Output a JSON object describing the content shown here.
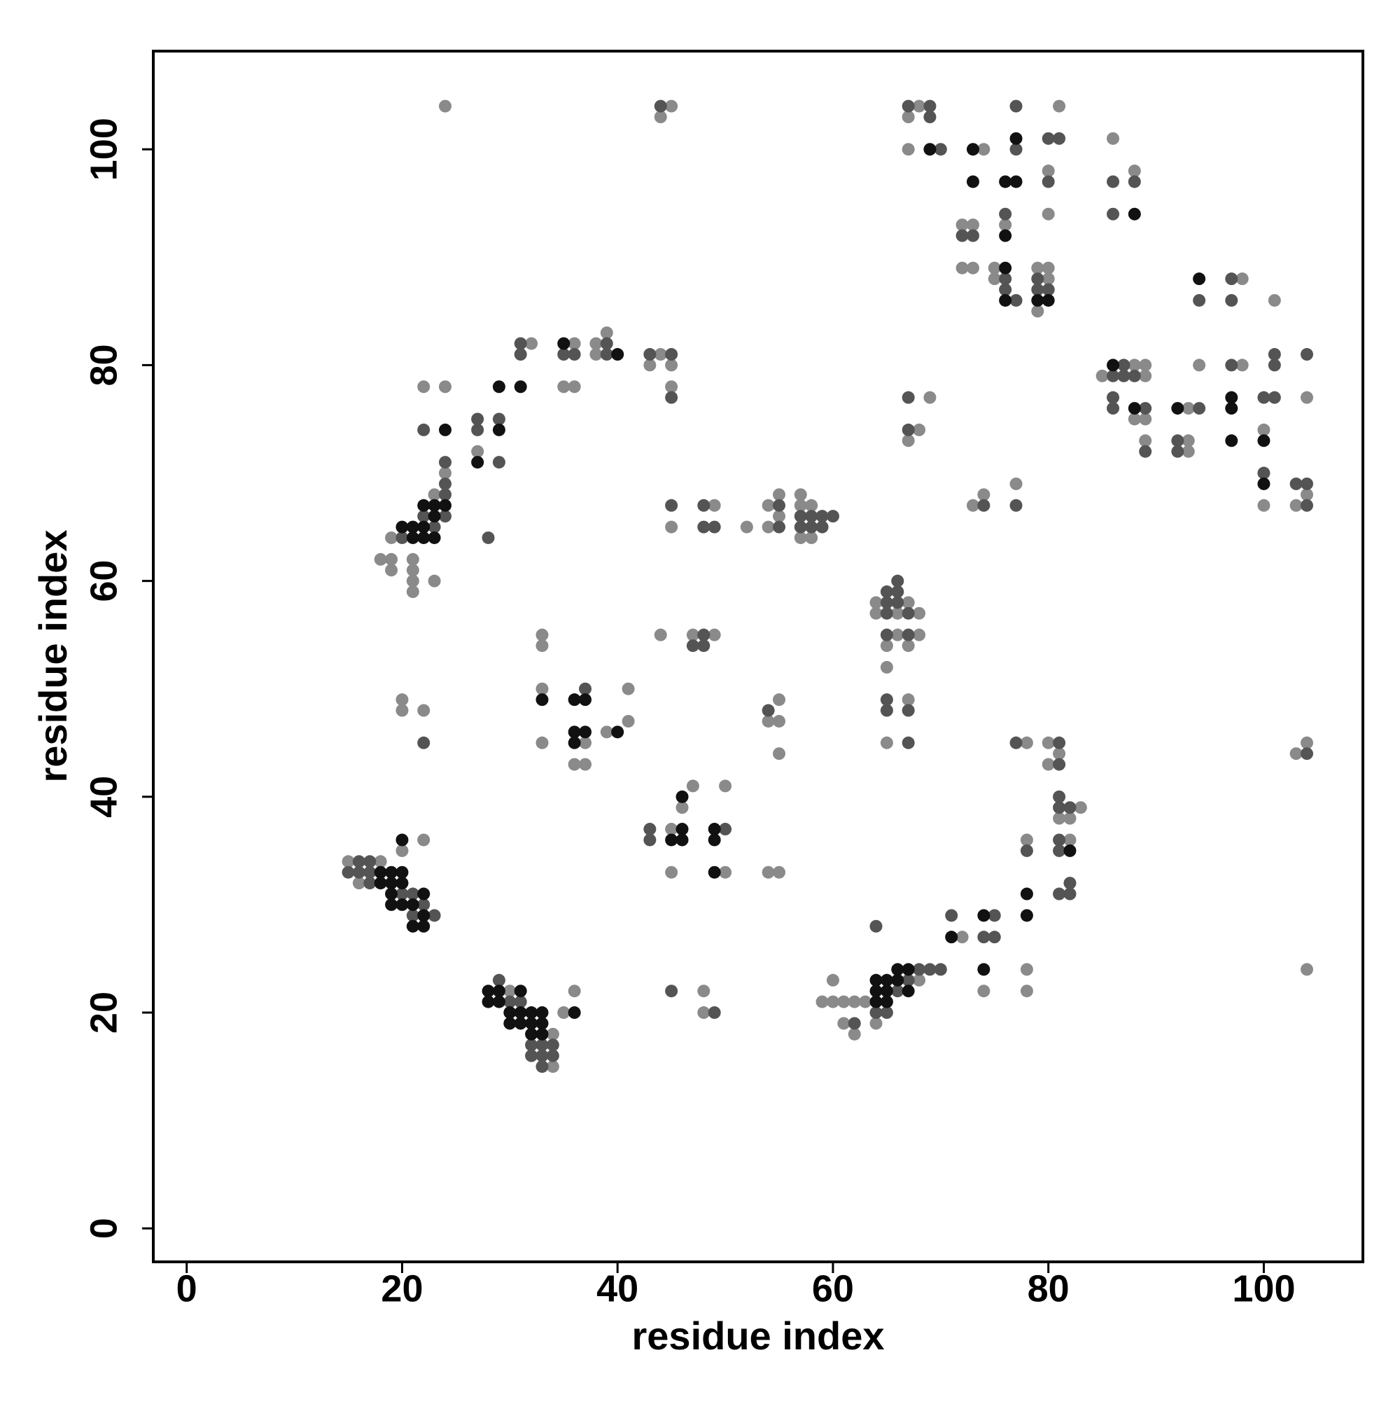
{
  "chart_data": {
    "type": "scatter",
    "xlabel": "residue index",
    "ylabel": "residue index",
    "xlim": [
      -3.1,
      109.2
    ],
    "ylim": [
      -3.1,
      109.1
    ],
    "xticks": [
      0,
      20,
      40,
      60,
      80,
      100
    ],
    "yticks": [
      0,
      20,
      40,
      60,
      80,
      100
    ],
    "series": [
      {
        "color": "#8a8a8a",
        "x": [
          15,
          16,
          18,
          20,
          22,
          30,
          34,
          34,
          35,
          36,
          18,
          19,
          19,
          19,
          21,
          21,
          21,
          21,
          22,
          23,
          23,
          24,
          24,
          27,
          32,
          35,
          36,
          36,
          38,
          38,
          39,
          43,
          44,
          45,
          45,
          44,
          45,
          24,
          45,
          49,
          52,
          54,
          54,
          55,
          55,
          57,
          57,
          57,
          58,
          58,
          33,
          33,
          33,
          33,
          36,
          37,
          37,
          39,
          41,
          41,
          20,
          20,
          22,
          45,
          45,
          46,
          47,
          50,
          50,
          54,
          55,
          48,
          48,
          47,
          49,
          44,
          54,
          55,
          55,
          55,
          59,
          60,
          60,
          61,
          61,
          62,
          62,
          63,
          64,
          68,
          72,
          74,
          78,
          78,
          78,
          78,
          80,
          80,
          81,
          81,
          82,
          82,
          83,
          104,
          103,
          104,
          64,
          64,
          65,
          65,
          65,
          66,
          66,
          67,
          67,
          67,
          68,
          68,
          67,
          67,
          68,
          72,
          72,
          73,
          73,
          74,
          75,
          75,
          76,
          79,
          79,
          80,
          80,
          80,
          80,
          81,
          86,
          88,
          67,
          68,
          69,
          73,
          74,
          77,
          85,
          88,
          88,
          89,
          89,
          89,
          89,
          93,
          93,
          93,
          94,
          98,
          98,
          100,
          100,
          101,
          103,
          104,
          104
        ],
        "y": [
          34,
          32,
          34,
          35,
          36,
          22,
          18,
          15,
          20,
          22,
          62,
          62,
          61,
          64,
          62,
          61,
          60,
          59,
          78,
          68,
          60,
          70,
          78,
          72,
          82,
          78,
          82,
          78,
          82,
          81,
          83,
          80,
          81,
          80,
          78,
          103,
          104,
          104,
          65,
          67,
          65,
          67,
          65,
          68,
          66,
          68,
          67,
          64,
          67,
          64,
          55,
          54,
          50,
          45,
          43,
          45,
          43,
          46,
          50,
          47,
          49,
          48,
          48,
          37,
          33,
          39,
          41,
          33,
          41,
          33,
          33,
          22,
          20,
          55,
          55,
          55,
          47,
          49,
          47,
          44,
          21,
          23,
          21,
          21,
          19,
          21,
          18,
          21,
          19,
          23,
          27,
          22,
          45,
          36,
          24,
          22,
          45,
          43,
          44,
          38,
          38,
          36,
          39,
          45,
          44,
          24,
          58,
          57,
          54,
          52,
          45,
          57,
          55,
          58,
          54,
          49,
          57,
          55,
          103,
          100,
          104,
          93,
          89,
          93,
          89,
          100,
          89,
          88,
          93,
          89,
          85,
          98,
          94,
          89,
          88,
          104,
          101,
          98,
          73,
          74,
          77,
          67,
          68,
          69,
          79,
          80,
          75,
          80,
          79,
          75,
          73,
          76,
          73,
          72,
          80,
          88,
          80,
          74,
          67,
          86,
          67,
          77,
          68
        ]
      },
      {
        "color": "#545454",
        "x": [
          15,
          16,
          16,
          17,
          17,
          17,
          20,
          21,
          21,
          22,
          23,
          29,
          30,
          31,
          32,
          32,
          33,
          33,
          33,
          34,
          34,
          20,
          22,
          22,
          23,
          24,
          24,
          24,
          24,
          27,
          27,
          28,
          29,
          29,
          31,
          31,
          35,
          36,
          39,
          39,
          43,
          45,
          45,
          44,
          45,
          48,
          48,
          49,
          55,
          55,
          57,
          57,
          58,
          58,
          59,
          59,
          60,
          37,
          22,
          43,
          43,
          50,
          45,
          49,
          47,
          48,
          48,
          54,
          62,
          64,
          64,
          65,
          66,
          67,
          68,
          69,
          70,
          71,
          74,
          75,
          75,
          77,
          78,
          81,
          81,
          81,
          81,
          81,
          81,
          81,
          82,
          82,
          82,
          104,
          65,
          65,
          65,
          65,
          65,
          65,
          66,
          66,
          66,
          67,
          67,
          67,
          67,
          67,
          69,
          69,
          70,
          72,
          73,
          76,
          76,
          76,
          77,
          77,
          77,
          79,
          79,
          80,
          80,
          80,
          81,
          86,
          86,
          88,
          67,
          67,
          74,
          77,
          86,
          86,
          86,
          87,
          87,
          88,
          89,
          89,
          92,
          92,
          94,
          94,
          97,
          97,
          97,
          100,
          100,
          101,
          101,
          101,
          103,
          104,
          104,
          104
        ],
        "y": [
          33,
          34,
          33,
          34,
          33,
          32,
          31,
          29,
          31,
          30,
          29,
          23,
          21,
          21,
          17,
          16,
          17,
          16,
          15,
          17,
          16,
          64,
          66,
          74,
          65,
          71,
          69,
          68,
          66,
          75,
          74,
          64,
          75,
          71,
          82,
          81,
          81,
          81,
          82,
          81,
          81,
          81,
          77,
          104,
          67,
          67,
          65,
          65,
          67,
          65,
          66,
          65,
          66,
          65,
          66,
          65,
          66,
          50,
          45,
          37,
          36,
          37,
          22,
          20,
          54,
          55,
          54,
          48,
          19,
          28,
          20,
          20,
          22,
          23,
          24,
          24,
          24,
          29,
          27,
          29,
          27,
          45,
          35,
          45,
          43,
          40,
          39,
          36,
          35,
          31,
          39,
          32,
          31,
          44,
          59,
          58,
          57,
          55,
          49,
          48,
          60,
          59,
          58,
          57,
          55,
          48,
          45,
          104,
          104,
          103,
          100,
          92,
          92,
          94,
          88,
          87,
          104,
          100,
          86,
          88,
          87,
          101,
          97,
          87,
          101,
          97,
          94,
          97,
          77,
          74,
          67,
          67,
          79,
          77,
          76,
          80,
          79,
          79,
          76,
          72,
          73,
          72,
          86,
          76,
          88,
          86,
          80,
          77,
          70,
          81,
          80,
          77,
          69,
          81,
          69,
          67
        ]
      },
      {
        "color": "#111111",
        "x": [
          18,
          18,
          19,
          19,
          19,
          19,
          20,
          20,
          20,
          20,
          21,
          21,
          22,
          22,
          22,
          28,
          28,
          29,
          29,
          30,
          30,
          31,
          31,
          31,
          32,
          32,
          32,
          33,
          33,
          33,
          36,
          20,
          21,
          21,
          22,
          22,
          22,
          23,
          23,
          23,
          24,
          24,
          27,
          29,
          29,
          31,
          35,
          40,
          33,
          36,
          36,
          36,
          37,
          37,
          40,
          45,
          46,
          46,
          46,
          49,
          49,
          49,
          64,
          64,
          64,
          65,
          65,
          65,
          66,
          66,
          67,
          67,
          71,
          74,
          74,
          78,
          78,
          82,
          69,
          73,
          73,
          76,
          76,
          76,
          76,
          77,
          77,
          79,
          80,
          88,
          86,
          88,
          92,
          94,
          97,
          97,
          97,
          100,
          100
        ],
        "y": [
          33,
          32,
          33,
          32,
          31,
          30,
          33,
          32,
          30,
          36,
          30,
          28,
          31,
          29,
          28,
          22,
          21,
          22,
          21,
          20,
          19,
          22,
          20,
          19,
          20,
          19,
          18,
          20,
          19,
          18,
          20,
          65,
          65,
          64,
          67,
          65,
          64,
          67,
          66,
          64,
          67,
          74,
          71,
          78,
          74,
          78,
          82,
          81,
          49,
          49,
          46,
          45,
          49,
          46,
          46,
          36,
          40,
          37,
          36,
          37,
          36,
          33,
          23,
          22,
          21,
          23,
          22,
          21,
          24,
          23,
          24,
          22,
          27,
          29,
          24,
          31,
          29,
          35,
          100,
          100,
          97,
          97,
          92,
          89,
          86,
          101,
          97,
          86,
          86,
          94,
          80,
          76,
          76,
          88,
          77,
          76,
          73,
          73,
          69
        ]
      }
    ]
  }
}
